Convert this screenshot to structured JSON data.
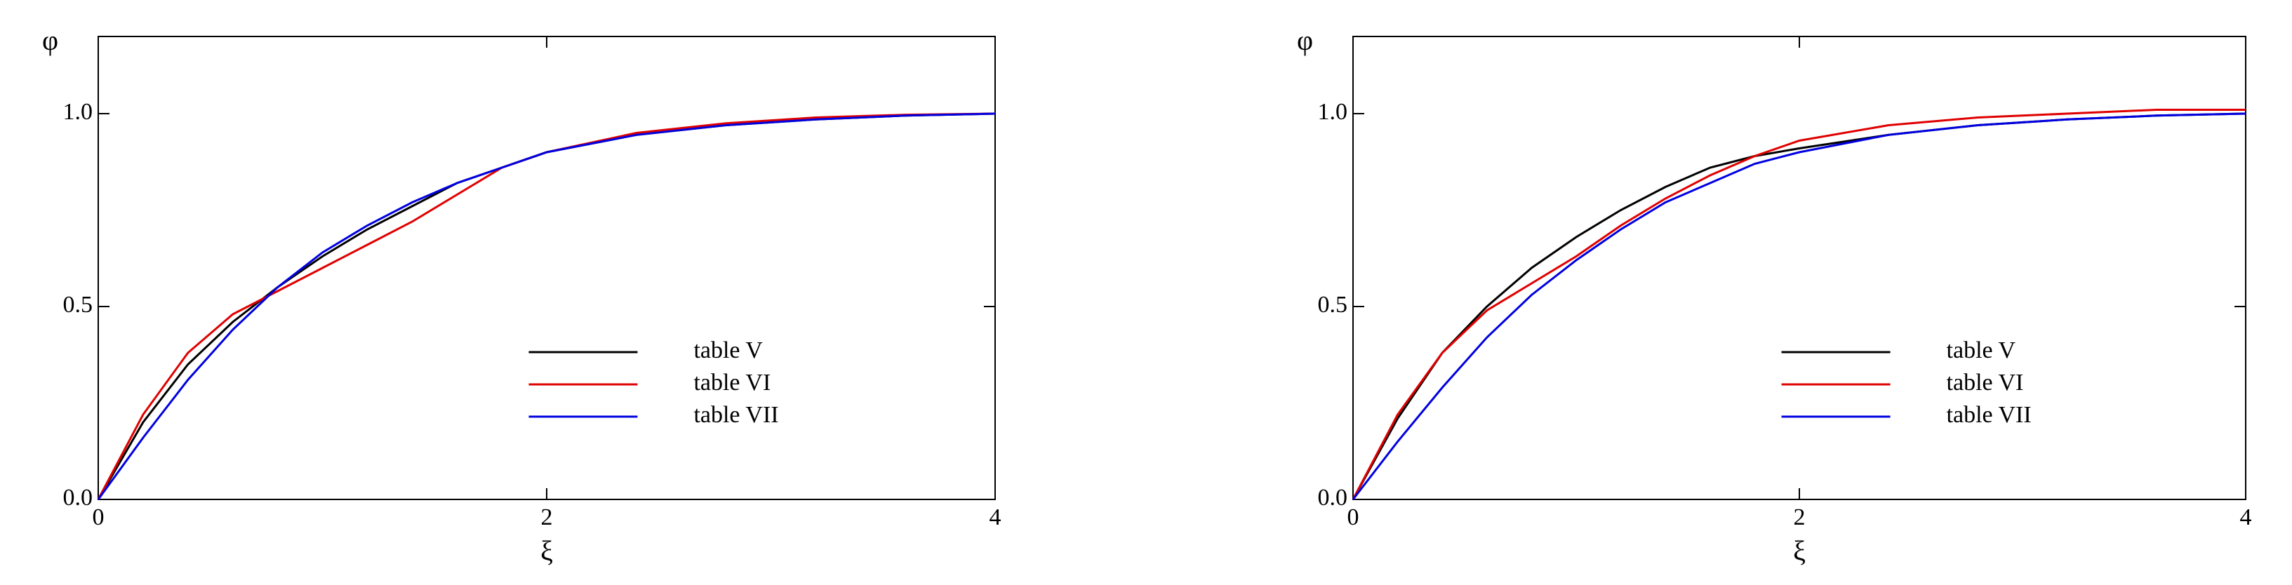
{
  "chart_data": [
    {
      "type": "line",
      "xlabel": "ξ",
      "ylabel": "φ",
      "x": [
        0,
        0.2,
        0.4,
        0.6,
        0.8,
        1.0,
        1.2,
        1.4,
        1.6,
        1.8,
        2.0,
        2.4,
        2.8,
        3.2,
        3.6,
        4.0
      ],
      "series": [
        {
          "name": "table V",
          "color": "#000000",
          "values": [
            0,
            0.2,
            0.35,
            0.46,
            0.55,
            0.63,
            0.7,
            0.76,
            0.82,
            0.86,
            0.9,
            0.945,
            0.97,
            0.985,
            0.995,
            1.0
          ]
        },
        {
          "name": "table VI",
          "color": "#e00000",
          "values": [
            0,
            0.22,
            0.38,
            0.48,
            0.54,
            0.6,
            0.66,
            0.72,
            0.79,
            0.86,
            0.9,
            0.95,
            0.975,
            0.99,
            0.997,
            1.0
          ]
        },
        {
          "name": "table VII",
          "color": "#0000e0",
          "values": [
            0,
            0.16,
            0.31,
            0.44,
            0.55,
            0.64,
            0.71,
            0.77,
            0.82,
            0.86,
            0.9,
            0.945,
            0.97,
            0.985,
            0.995,
            1.0
          ]
        }
      ],
      "xlim": [
        0,
        4
      ],
      "ylim": [
        0,
        1.2
      ],
      "xticks": [
        0,
        2,
        4
      ],
      "yticks": [
        {
          "value": 0,
          "label": "0.0"
        },
        0.5,
        {
          "value": 1,
          "label": "1.0"
        }
      ],
      "legend": "lower right"
    },
    {
      "type": "line",
      "xlabel": "ξ",
      "ylabel": "φ",
      "x": [
        0,
        0.2,
        0.4,
        0.6,
        0.8,
        1.0,
        1.2,
        1.4,
        1.6,
        1.8,
        2.0,
        2.4,
        2.8,
        3.2,
        3.6,
        4.0
      ],
      "series": [
        {
          "name": "table V",
          "color": "#000000",
          "values": [
            0,
            0.21,
            0.38,
            0.5,
            0.6,
            0.68,
            0.75,
            0.81,
            0.86,
            0.89,
            0.91,
            0.945,
            0.97,
            0.985,
            0.995,
            1.0
          ]
        },
        {
          "name": "table VI",
          "color": "#e00000",
          "values": [
            0,
            0.22,
            0.38,
            0.49,
            0.56,
            0.63,
            0.71,
            0.78,
            0.84,
            0.89,
            0.93,
            0.97,
            0.99,
            1.0,
            1.01,
            1.01
          ]
        },
        {
          "name": "table VII",
          "color": "#0000e0",
          "values": [
            0,
            0.15,
            0.29,
            0.42,
            0.53,
            0.62,
            0.7,
            0.77,
            0.82,
            0.87,
            0.9,
            0.945,
            0.97,
            0.985,
            0.995,
            1.0
          ]
        }
      ],
      "xlim": [
        0,
        4
      ],
      "ylim": [
        0,
        1.2
      ],
      "xticks": [
        0,
        2,
        4
      ],
      "yticks": [
        {
          "value": 0,
          "label": "0.0"
        },
        0.5,
        {
          "value": 1,
          "label": "1.0"
        }
      ],
      "legend": "lower right"
    }
  ]
}
